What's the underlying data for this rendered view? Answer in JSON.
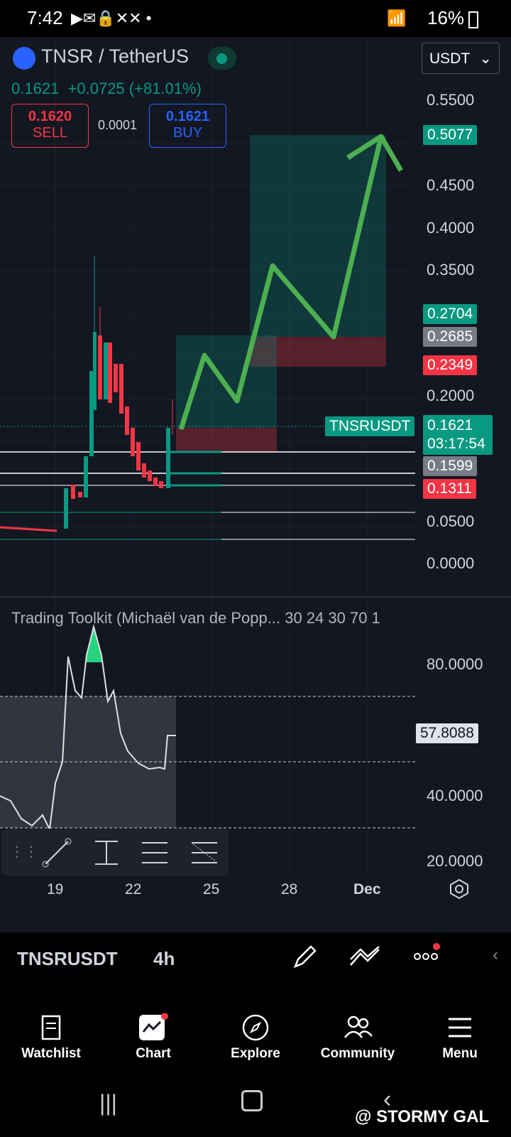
{
  "status_bar": {
    "time": "7:42",
    "battery": "16%"
  },
  "symbol_header": {
    "title": "TNSR / TetherUS",
    "currency_select": "USDT",
    "last_price": "0.1621",
    "change": "+0.0725 (+81.01%)",
    "sell_price": "0.1620",
    "sell_label": "SELL",
    "spread": "0.0001",
    "buy_price": "0.1621",
    "buy_label": "BUY"
  },
  "price_axis": [
    "0.5500",
    "0.4500",
    "0.4000",
    "0.3500",
    "0.2000",
    "0.0500",
    "0.0000"
  ],
  "price_tags": {
    "target": "0.5077",
    "tp": "0.2704",
    "entry": "0.2685",
    "stop": "0.2349",
    "symbol_tag": "TNSRUSDT",
    "current": "0.1621",
    "countdown": "03:17:54",
    "level1": "0.1599",
    "level2": "0.1311"
  },
  "indicator": {
    "title": "Trading Toolkit (Michaël van de Popp... 30 24 30 70 1",
    "axis": [
      "80.0000",
      "40.0000",
      "20.0000"
    ],
    "value": "57.8088"
  },
  "time_axis": [
    "19",
    "22",
    "25",
    "28",
    "Dec"
  ],
  "toolbar": {
    "symbol": "TNSRUSDT",
    "interval": "4h"
  },
  "bottom_nav": [
    {
      "label": "Watchlist",
      "icon": "watchlist-icon"
    },
    {
      "label": "Chart",
      "icon": "chart-icon"
    },
    {
      "label": "Explore",
      "icon": "compass-icon"
    },
    {
      "label": "Community",
      "icon": "community-icon"
    },
    {
      "label": "Menu",
      "icon": "menu-icon"
    }
  ],
  "watermark": "@ STORMY GAL",
  "colors": {
    "green": "#089981",
    "red": "#f23645",
    "arrow": "#4caf50",
    "bg": "#131722"
  }
}
